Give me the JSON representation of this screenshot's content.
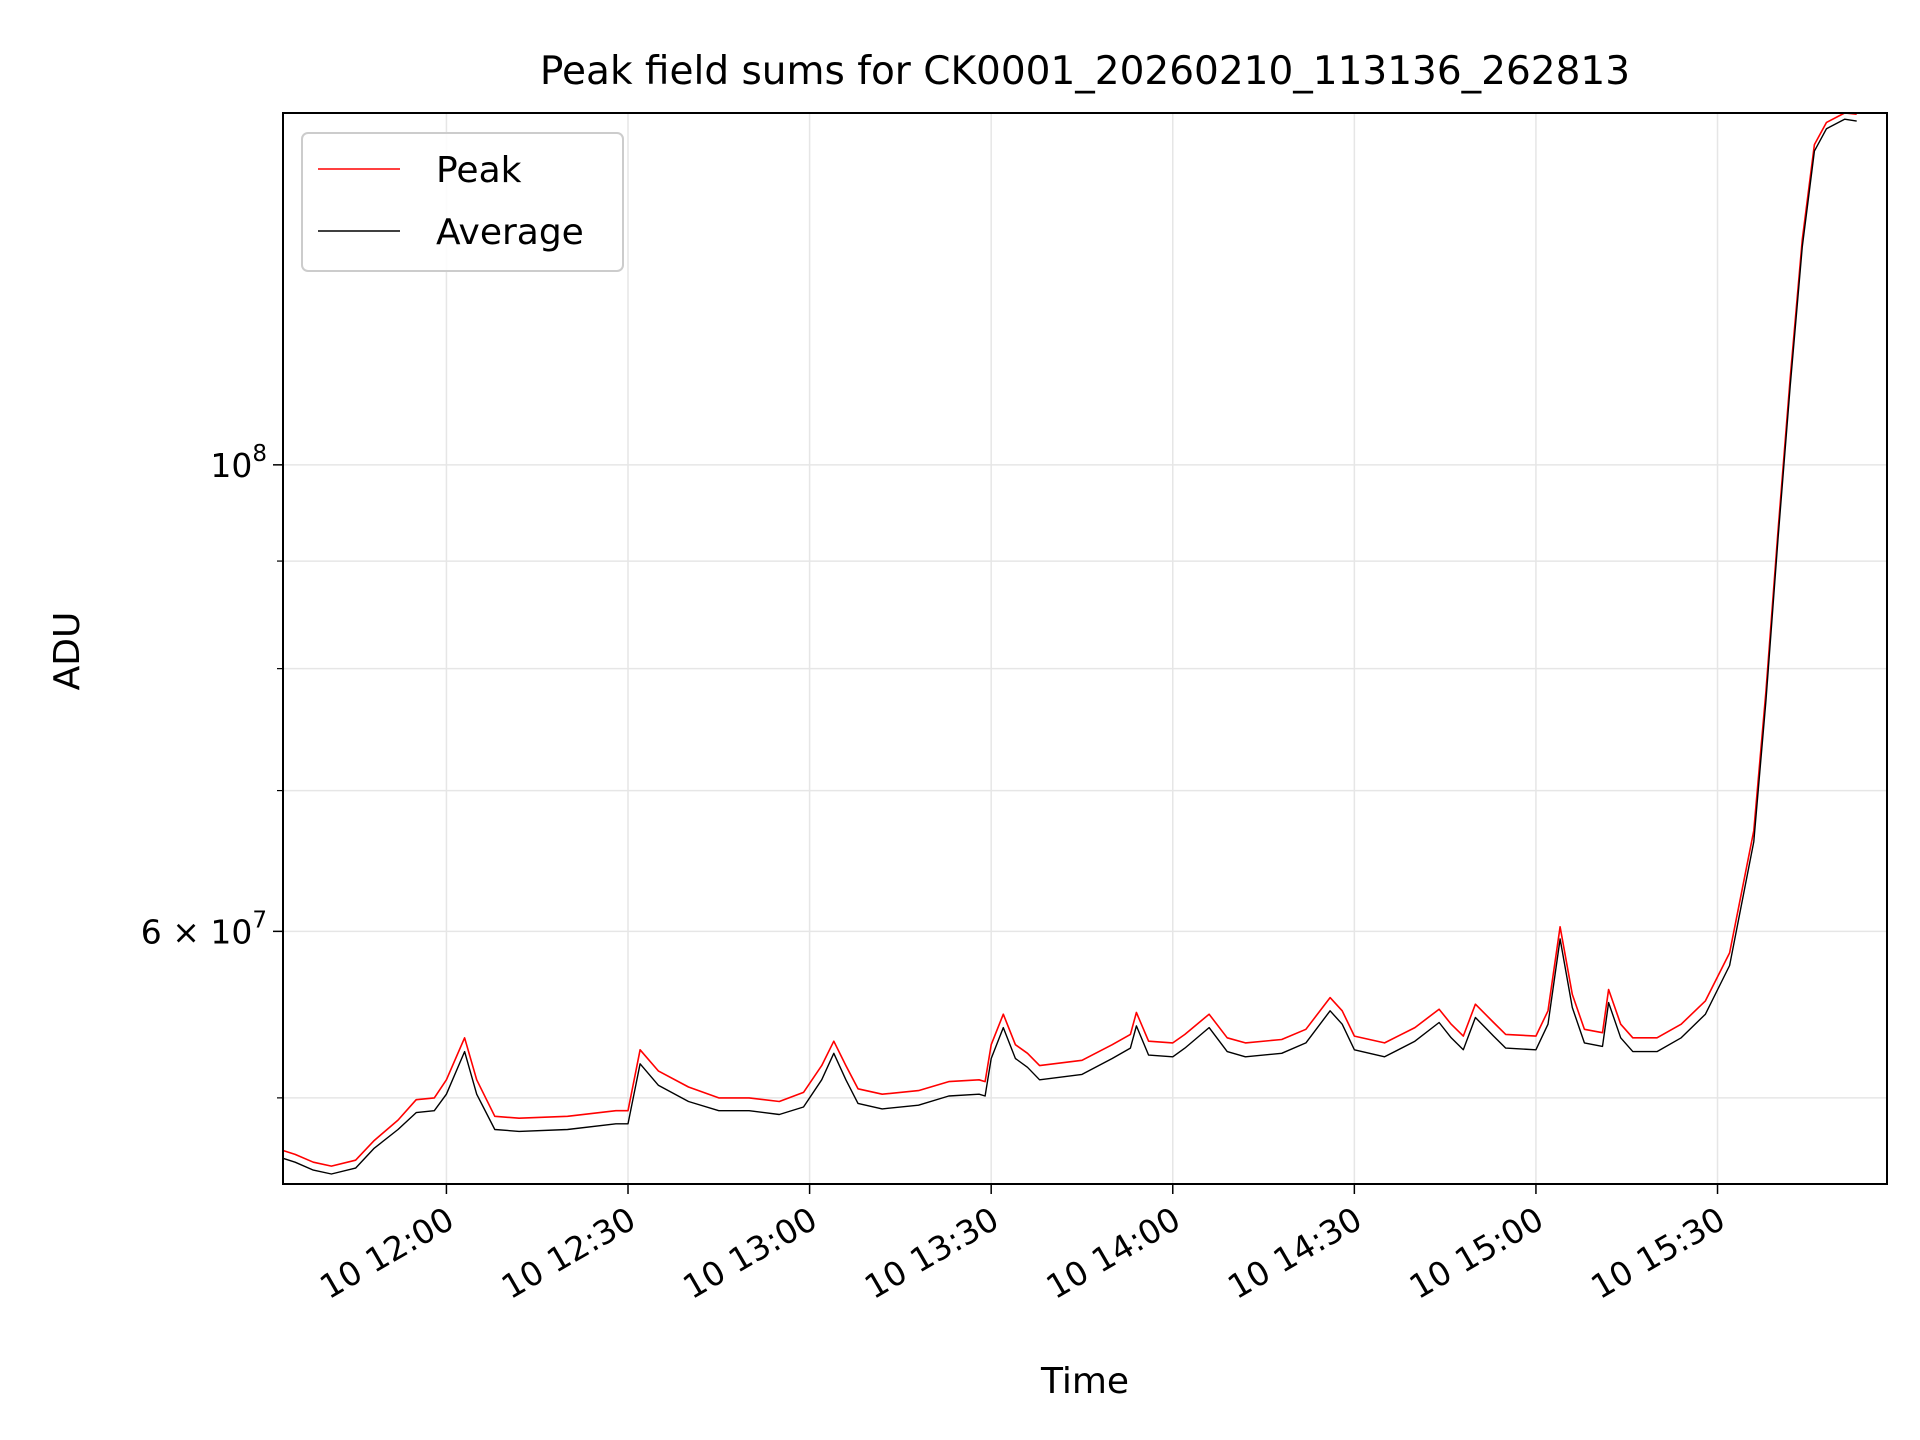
{
  "chart_data": {
    "type": "line",
    "title": "Peak field sums for CK0001_20260210_113136_262813",
    "xlabel": "Time",
    "ylabel": "ADU",
    "xscale": "time",
    "yscale": "log",
    "xlim": [
      "2026-02-10 11:33",
      "2026-02-10 15:58"
    ],
    "ylim": [
      45500000,
      147000000
    ],
    "grid": true,
    "legend_position": "top-left",
    "x_ticks": [
      {
        "t": "2026-02-10 12:00",
        "label": "10 12:00"
      },
      {
        "t": "2026-02-10 12:30",
        "label": "10 12:30"
      },
      {
        "t": "2026-02-10 13:00",
        "label": "10 13:00"
      },
      {
        "t": "2026-02-10 13:30",
        "label": "10 13:30"
      },
      {
        "t": "2026-02-10 14:00",
        "label": "10 14:00"
      },
      {
        "t": "2026-02-10 14:30",
        "label": "10 14:30"
      },
      {
        "t": "2026-02-10 15:00",
        "label": "10 15:00"
      },
      {
        "t": "2026-02-10 15:30",
        "label": "10 15:30"
      }
    ],
    "y_major_ticks": [
      {
        "value": 100000000,
        "label_base": "10",
        "label_exp": "8"
      },
      {
        "value": 60000000,
        "label_base": "6 × 10",
        "label_exp": "7"
      }
    ],
    "y_minor_ticks": [
      50000000,
      70000000,
      80000000,
      90000000
    ],
    "series": [
      {
        "name": "Peak",
        "color": "#ff0000",
        "points": [
          [
            "2026-02-10 11:33",
            47200000
          ],
          [
            "2026-02-10 11:35",
            47000000
          ],
          [
            "2026-02-10 11:38",
            46600000
          ],
          [
            "2026-02-10 11:41",
            46400000
          ],
          [
            "2026-02-10 11:45",
            46700000
          ],
          [
            "2026-02-10 11:48",
            47700000
          ],
          [
            "2026-02-10 11:52",
            48800000
          ],
          [
            "2026-02-10 11:55",
            49900000
          ],
          [
            "2026-02-10 11:58",
            50000000
          ],
          [
            "2026-02-10 12:00",
            51000000
          ],
          [
            "2026-02-10 12:03",
            53400000
          ],
          [
            "2026-02-10 12:05",
            51000000
          ],
          [
            "2026-02-10 12:08",
            49000000
          ],
          [
            "2026-02-10 12:12",
            48900000
          ],
          [
            "2026-02-10 12:20",
            49000000
          ],
          [
            "2026-02-10 12:28",
            49300000
          ],
          [
            "2026-02-10 12:30",
            49300000
          ],
          [
            "2026-02-10 12:32",
            52700000
          ],
          [
            "2026-02-10 12:35",
            51500000
          ],
          [
            "2026-02-10 12:40",
            50600000
          ],
          [
            "2026-02-10 12:45",
            50000000
          ],
          [
            "2026-02-10 12:50",
            50000000
          ],
          [
            "2026-02-10 12:55",
            49800000
          ],
          [
            "2026-02-10 12:59",
            50300000
          ],
          [
            "2026-02-10 13:02",
            51800000
          ],
          [
            "2026-02-10 13:04",
            53200000
          ],
          [
            "2026-02-10 13:06",
            51800000
          ],
          [
            "2026-02-10 13:08",
            50500000
          ],
          [
            "2026-02-10 13:12",
            50200000
          ],
          [
            "2026-02-10 13:18",
            50400000
          ],
          [
            "2026-02-10 13:23",
            50900000
          ],
          [
            "2026-02-10 13:28",
            51000000
          ],
          [
            "2026-02-10 13:29",
            50900000
          ],
          [
            "2026-02-10 13:30",
            53000000
          ],
          [
            "2026-02-10 13:32",
            54800000
          ],
          [
            "2026-02-10 13:34",
            53000000
          ],
          [
            "2026-02-10 13:36",
            52500000
          ],
          [
            "2026-02-10 13:38",
            51800000
          ],
          [
            "2026-02-10 13:45",
            52100000
          ],
          [
            "2026-02-10 13:50",
            53000000
          ],
          [
            "2026-02-10 13:53",
            53600000
          ],
          [
            "2026-02-10 13:54",
            54900000
          ],
          [
            "2026-02-10 13:56",
            53200000
          ],
          [
            "2026-02-10 14:00",
            53100000
          ],
          [
            "2026-02-10 14:02",
            53600000
          ],
          [
            "2026-02-10 14:06",
            54800000
          ],
          [
            "2026-02-10 14:09",
            53400000
          ],
          [
            "2026-02-10 14:12",
            53100000
          ],
          [
            "2026-02-10 14:18",
            53300000
          ],
          [
            "2026-02-10 14:22",
            53900000
          ],
          [
            "2026-02-10 14:26",
            55800000
          ],
          [
            "2026-02-10 14:28",
            55000000
          ],
          [
            "2026-02-10 14:30",
            53500000
          ],
          [
            "2026-02-10 14:35",
            53100000
          ],
          [
            "2026-02-10 14:40",
            54000000
          ],
          [
            "2026-02-10 14:44",
            55100000
          ],
          [
            "2026-02-10 14:46",
            54200000
          ],
          [
            "2026-02-10 14:48",
            53500000
          ],
          [
            "2026-02-10 14:50",
            55400000
          ],
          [
            "2026-02-10 14:53",
            54300000
          ],
          [
            "2026-02-10 14:55",
            53600000
          ],
          [
            "2026-02-10 15:00",
            53500000
          ],
          [
            "2026-02-10 15:02",
            55000000
          ],
          [
            "2026-02-10 15:04",
            60300000
          ],
          [
            "2026-02-10 15:06",
            56000000
          ],
          [
            "2026-02-10 15:08",
            53900000
          ],
          [
            "2026-02-10 15:11",
            53700000
          ],
          [
            "2026-02-10 15:12",
            56300000
          ],
          [
            "2026-02-10 15:14",
            54200000
          ],
          [
            "2026-02-10 15:16",
            53400000
          ],
          [
            "2026-02-10 15:20",
            53400000
          ],
          [
            "2026-02-10 15:24",
            54200000
          ],
          [
            "2026-02-10 15:28",
            55600000
          ],
          [
            "2026-02-10 15:32",
            58600000
          ],
          [
            "2026-02-10 15:36",
            67000000
          ],
          [
            "2026-02-10 15:38",
            78000000
          ],
          [
            "2026-02-10 15:40",
            93000000
          ],
          [
            "2026-02-10 15:42",
            110000000
          ],
          [
            "2026-02-10 15:44",
            128000000
          ],
          [
            "2026-02-10 15:46",
            142000000
          ],
          [
            "2026-02-10 15:48",
            145500000
          ],
          [
            "2026-02-10 15:51",
            147000000
          ],
          [
            "2026-02-10 15:53",
            146800000
          ]
        ]
      },
      {
        "name": "Average",
        "color": "#000000",
        "points": [
          [
            "2026-02-10 11:33",
            46800000
          ],
          [
            "2026-02-10 11:35",
            46600000
          ],
          [
            "2026-02-10 11:38",
            46200000
          ],
          [
            "2026-02-10 11:41",
            46000000
          ],
          [
            "2026-02-10 11:45",
            46300000
          ],
          [
            "2026-02-10 11:48",
            47300000
          ],
          [
            "2026-02-10 11:52",
            48300000
          ],
          [
            "2026-02-10 11:55",
            49200000
          ],
          [
            "2026-02-10 11:58",
            49300000
          ],
          [
            "2026-02-10 12:00",
            50200000
          ],
          [
            "2026-02-10 12:03",
            52600000
          ],
          [
            "2026-02-10 12:05",
            50200000
          ],
          [
            "2026-02-10 12:08",
            48300000
          ],
          [
            "2026-02-10 12:12",
            48200000
          ],
          [
            "2026-02-10 12:20",
            48300000
          ],
          [
            "2026-02-10 12:28",
            48600000
          ],
          [
            "2026-02-10 12:30",
            48600000
          ],
          [
            "2026-02-10 12:32",
            51900000
          ],
          [
            "2026-02-10 12:35",
            50700000
          ],
          [
            "2026-02-10 12:40",
            49800000
          ],
          [
            "2026-02-10 12:45",
            49300000
          ],
          [
            "2026-02-10 12:50",
            49300000
          ],
          [
            "2026-02-10 12:55",
            49100000
          ],
          [
            "2026-02-10 12:59",
            49500000
          ],
          [
            "2026-02-10 13:02",
            51000000
          ],
          [
            "2026-02-10 13:04",
            52500000
          ],
          [
            "2026-02-10 13:06",
            51000000
          ],
          [
            "2026-02-10 13:08",
            49700000
          ],
          [
            "2026-02-10 13:12",
            49400000
          ],
          [
            "2026-02-10 13:18",
            49600000
          ],
          [
            "2026-02-10 13:23",
            50100000
          ],
          [
            "2026-02-10 13:28",
            50200000
          ],
          [
            "2026-02-10 13:29",
            50100000
          ],
          [
            "2026-02-10 13:30",
            52200000
          ],
          [
            "2026-02-10 13:32",
            54000000
          ],
          [
            "2026-02-10 13:34",
            52200000
          ],
          [
            "2026-02-10 13:36",
            51700000
          ],
          [
            "2026-02-10 13:38",
            51000000
          ],
          [
            "2026-02-10 13:45",
            51300000
          ],
          [
            "2026-02-10 13:50",
            52200000
          ],
          [
            "2026-02-10 13:53",
            52800000
          ],
          [
            "2026-02-10 13:54",
            54100000
          ],
          [
            "2026-02-10 13:56",
            52400000
          ],
          [
            "2026-02-10 14:00",
            52300000
          ],
          [
            "2026-02-10 14:02",
            52800000
          ],
          [
            "2026-02-10 14:06",
            54000000
          ],
          [
            "2026-02-10 14:09",
            52600000
          ],
          [
            "2026-02-10 14:12",
            52300000
          ],
          [
            "2026-02-10 14:18",
            52500000
          ],
          [
            "2026-02-10 14:22",
            53100000
          ],
          [
            "2026-02-10 14:26",
            55000000
          ],
          [
            "2026-02-10 14:28",
            54200000
          ],
          [
            "2026-02-10 14:30",
            52700000
          ],
          [
            "2026-02-10 14:35",
            52300000
          ],
          [
            "2026-02-10 14:40",
            53200000
          ],
          [
            "2026-02-10 14:44",
            54300000
          ],
          [
            "2026-02-10 14:46",
            53400000
          ],
          [
            "2026-02-10 14:48",
            52700000
          ],
          [
            "2026-02-10 14:50",
            54600000
          ],
          [
            "2026-02-10 14:53",
            53500000
          ],
          [
            "2026-02-10 14:55",
            52800000
          ],
          [
            "2026-02-10 15:00",
            52700000
          ],
          [
            "2026-02-10 15:02",
            54200000
          ],
          [
            "2026-02-10 15:04",
            59500000
          ],
          [
            "2026-02-10 15:06",
            55200000
          ],
          [
            "2026-02-10 15:08",
            53100000
          ],
          [
            "2026-02-10 15:11",
            52900000
          ],
          [
            "2026-02-10 15:12",
            55500000
          ],
          [
            "2026-02-10 15:14",
            53400000
          ],
          [
            "2026-02-10 15:16",
            52600000
          ],
          [
            "2026-02-10 15:20",
            52600000
          ],
          [
            "2026-02-10 15:24",
            53400000
          ],
          [
            "2026-02-10 15:28",
            54800000
          ],
          [
            "2026-02-10 15:32",
            57800000
          ],
          [
            "2026-02-10 15:36",
            66200000
          ],
          [
            "2026-02-10 15:38",
            77200000
          ],
          [
            "2026-02-10 15:40",
            92200000
          ],
          [
            "2026-02-10 15:42",
            109000000
          ],
          [
            "2026-02-10 15:44",
            127000000
          ],
          [
            "2026-02-10 15:46",
            141000000
          ],
          [
            "2026-02-10 15:48",
            144500000
          ],
          [
            "2026-02-10 15:51",
            146000000
          ],
          [
            "2026-02-10 15:53",
            145700000
          ]
        ]
      }
    ]
  }
}
